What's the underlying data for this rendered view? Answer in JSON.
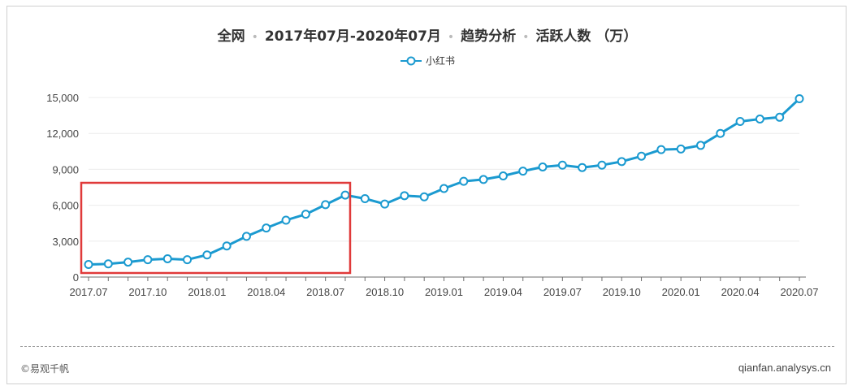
{
  "title": {
    "part1": "全网",
    "part2": "2017年07月-2020年07月",
    "part3": "趋势分析",
    "part4": "活跃人数 （万）",
    "separator": "•"
  },
  "footer": {
    "left": "©易观千帆",
    "right": "qianfan.analysys.cn"
  },
  "chart_data": {
    "type": "line",
    "series": [
      {
        "name": "小红书",
        "color": "#1b9ad0",
        "values": [
          1050,
          1100,
          1250,
          1450,
          1530,
          1450,
          1850,
          2600,
          3400,
          4100,
          4750,
          5250,
          6050,
          6850,
          6550,
          6100,
          6800,
          6700,
          7400,
          8000,
          8150,
          8450,
          8850,
          9200,
          9350,
          9150,
          9350,
          9650,
          10100,
          10650,
          10700,
          11000,
          12000,
          13000,
          13200,
          13350,
          14900
        ]
      }
    ],
    "x": [
      "2017.07",
      "2017.08",
      "2017.09",
      "2017.10",
      "2017.11",
      "2017.12",
      "2018.01",
      "2018.02",
      "2018.03",
      "2018.04",
      "2018.05",
      "2018.06",
      "2018.07",
      "2018.08",
      "2018.09",
      "2018.10",
      "2018.11",
      "2018.12",
      "2019.01",
      "2019.02",
      "2019.03",
      "2019.04",
      "2019.05",
      "2019.06",
      "2019.07",
      "2019.08",
      "2019.09",
      "2019.10",
      "2019.11",
      "2019.12",
      "2020.01",
      "2020.02",
      "2020.03",
      "2020.04",
      "2020.05",
      "2020.06",
      "2020.07"
    ],
    "x_tick_labels": [
      "2017.07",
      "2017.10",
      "2018.01",
      "2018.04",
      "2018.07",
      "2018.10",
      "2019.01",
      "2019.04",
      "2019.07",
      "2019.10",
      "2020.01",
      "2020.04",
      "2020.07"
    ],
    "y_ticks": [
      "0",
      "3,000",
      "6,000",
      "9,000",
      "12,000",
      "15,000"
    ],
    "ylim": [
      0,
      15000
    ],
    "highlight_range": [
      "2017.07",
      "2018.08"
    ],
    "highlight_color": "#e03a3a",
    "grid": true,
    "legend_position": "top-center"
  }
}
